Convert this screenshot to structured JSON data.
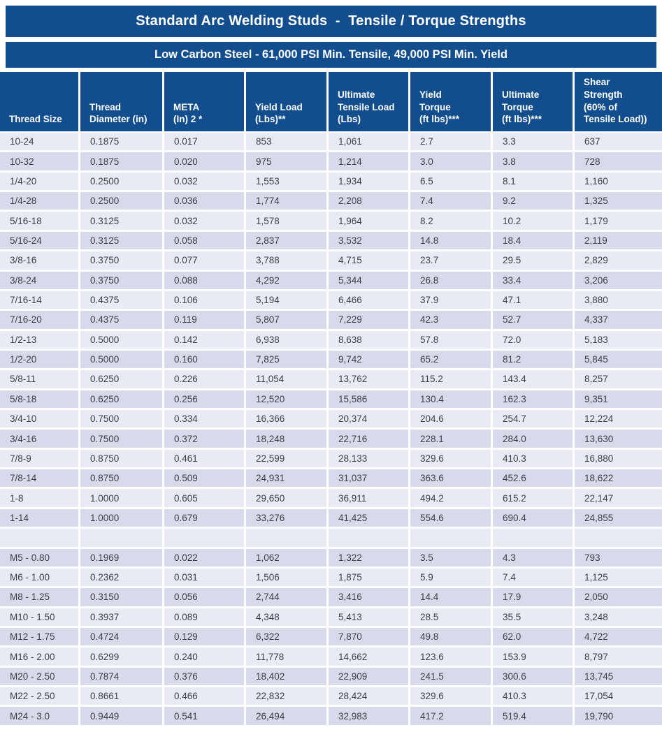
{
  "page": {
    "title": "Standard Arc Welding Studs  -  Tensile / Torque Strengths",
    "subtitle": "Low Carbon Steel - 61,000 PSI Min. Tensile, 49,000 PSI Min. Yield"
  },
  "colors": {
    "banner_blue": "#124e8e",
    "row_light": "#eaeaf4",
    "row_dark": "#d8d9ea",
    "cell_text": "#3e3e4a",
    "header_text": "#ffffff"
  },
  "table": {
    "columns": [
      "Thread Size",
      "Thread\nDiameter (in)",
      "META\n(In) 2 *",
      "Yield Load\n(Lbs)**",
      "Ultimate\nTensile Load\n(Lbs)",
      "Yield\nTorque\n(ft lbs)***",
      "Ultimate\nTorque\n(ft lbs)***",
      "Shear\nStrength\n(60% of\nTensile Load))"
    ],
    "rows": [
      [
        "10-24",
        "0.1875",
        "0.017",
        "853",
        "1,061",
        "2.7",
        "3.3",
        "637"
      ],
      [
        "10-32",
        "0.1875",
        "0.020",
        "975",
        "1,214",
        "3.0",
        "3.8",
        "728"
      ],
      [
        "1/4-20",
        "0.2500",
        "0.032",
        "1,553",
        "1,934",
        "6.5",
        "8.1",
        "1,160"
      ],
      [
        "1/4-28",
        "0.2500",
        "0.036",
        "1,774",
        "2,208",
        "7.4",
        "9.2",
        "1,325"
      ],
      [
        "5/16-18",
        "0.3125",
        "0.032",
        "1,578",
        "1,964",
        "8.2",
        "10.2",
        "1,179"
      ],
      [
        "5/16-24",
        "0.3125",
        "0.058",
        "2,837",
        "3,532",
        "14.8",
        "18.4",
        "2,119"
      ],
      [
        "3/8-16",
        "0.3750",
        "0.077",
        "3,788",
        "4,715",
        "23.7",
        "29.5",
        "2,829"
      ],
      [
        "3/8-24",
        "0.3750",
        "0.088",
        "4,292",
        "5,344",
        "26.8",
        "33.4",
        "3,206"
      ],
      [
        "7/16-14",
        "0.4375",
        "0.106",
        "5,194",
        "6,466",
        "37.9",
        "47.1",
        "3,880"
      ],
      [
        "7/16-20",
        "0.4375",
        "0.119",
        "5,807",
        "7,229",
        "42.3",
        "52.7",
        "4,337"
      ],
      [
        "1/2-13",
        "0.5000",
        "0.142",
        "6,938",
        "8,638",
        "57.8",
        "72.0",
        "5,183"
      ],
      [
        "1/2-20",
        "0.5000",
        "0.160",
        "7,825",
        "9,742",
        "65.2",
        "81.2",
        "5,845"
      ],
      [
        "5/8-11",
        "0.6250",
        "0.226",
        "11,054",
        "13,762",
        "115.2",
        "143.4",
        "8,257"
      ],
      [
        "5/8-18",
        "0.6250",
        "0.256",
        "12,520",
        "15,586",
        "130.4",
        "162.3",
        "9,351"
      ],
      [
        "3/4-10",
        "0.7500",
        "0.334",
        "16,366",
        "20,374",
        "204.6",
        "254.7",
        "12,224"
      ],
      [
        "3/4-16",
        "0.7500",
        "0.372",
        "18,248",
        "22,716",
        "228.1",
        "284.0",
        "13,630"
      ],
      [
        "7/8-9",
        "0.8750",
        "0.461",
        "22,599",
        "28,133",
        "329.6",
        "410.3",
        "16,880"
      ],
      [
        "7/8-14",
        "0.8750",
        "0.509",
        "24,931",
        "31,037",
        "363.6",
        "452.6",
        "18,622"
      ],
      [
        "1-8",
        "1.0000",
        "0.605",
        "29,650",
        "36,911",
        "494.2",
        "615.2",
        "22,147"
      ],
      [
        "1-14",
        "1.0000",
        "0.679",
        "33,276",
        "41,425",
        "554.6",
        "690.4",
        "24,855"
      ],
      [
        "",
        "",
        "",
        "",
        "",
        "",
        "",
        ""
      ],
      [
        "M5 - 0.80",
        "0.1969",
        "0.022",
        "1,062",
        "1,322",
        "3.5",
        "4.3",
        "793"
      ],
      [
        "M6 - 1.00",
        "0.2362",
        "0.031",
        "1,506",
        "1,875",
        "5.9",
        "7.4",
        "1,125"
      ],
      [
        "M8 - 1.25",
        "0.3150",
        "0.056",
        "2,744",
        "3,416",
        "14.4",
        "17.9",
        "2,050"
      ],
      [
        "M10 - 1.50",
        "0.3937",
        "0.089",
        "4,348",
        "5,413",
        "28.5",
        "35.5",
        "3,248"
      ],
      [
        "M12 - 1.75",
        "0.4724",
        "0.129",
        "6,322",
        "7,870",
        "49.8",
        "62.0",
        "4,722"
      ],
      [
        "M16 - 2.00",
        "0.6299",
        "0.240",
        "11,778",
        "14,662",
        "123.6",
        "153.9",
        "8,797"
      ],
      [
        "M20 - 2.50",
        "0.7874",
        "0.376",
        "18,402",
        "22,909",
        "241.5",
        "300.6",
        "13,745"
      ],
      [
        "M22 - 2.50",
        "0.8661",
        "0.466",
        "22,832",
        "28,424",
        "329.6",
        "410.3",
        "17,054"
      ],
      [
        "M24 - 3.0",
        "0.9449",
        "0.541",
        "26,494",
        "32,983",
        "417.2",
        "519.4",
        "19,790"
      ]
    ]
  }
}
